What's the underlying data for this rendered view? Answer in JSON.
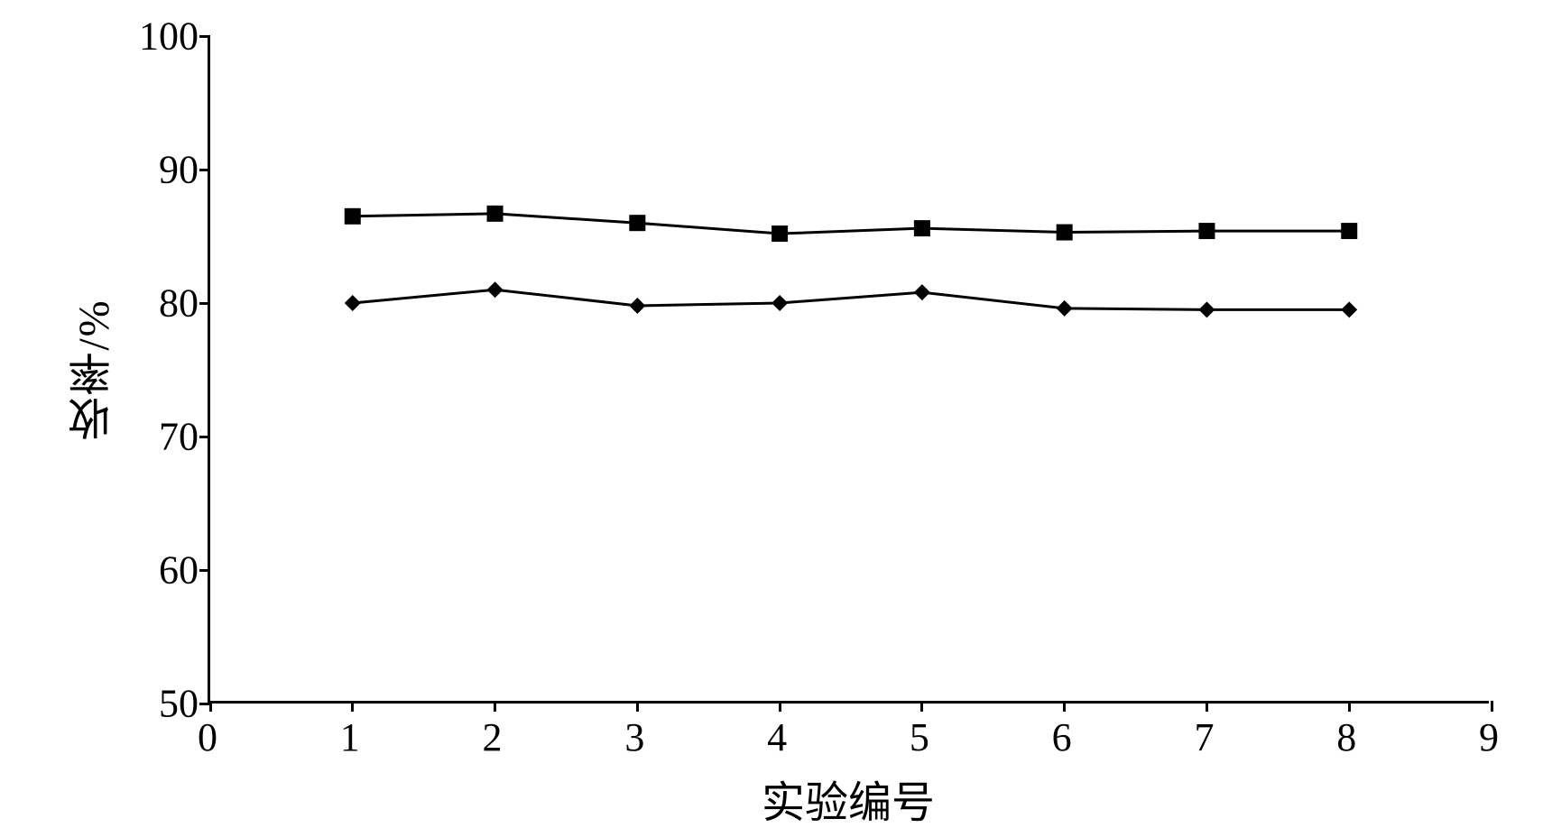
{
  "chart": {
    "type": "line",
    "background_color": "#ffffff",
    "axis_color": "#000000",
    "axis_width": 3,
    "x_axis": {
      "title": "实验编号",
      "min": 0,
      "max": 9,
      "ticks": [
        0,
        1,
        2,
        3,
        4,
        5,
        6,
        7,
        8,
        9
      ],
      "tick_labels": [
        "0",
        "1",
        "2",
        "3",
        "4",
        "5",
        "6",
        "7",
        "8",
        "9"
      ],
      "title_fontsize": 48,
      "label_fontsize": 44
    },
    "y_axis": {
      "title": "收率/%",
      "min": 50,
      "max": 100,
      "ticks": [
        50,
        60,
        70,
        80,
        90,
        100
      ],
      "tick_labels": [
        "50",
        "60",
        "70",
        "80",
        "90",
        "100"
      ],
      "title_fontsize": 48,
      "label_fontsize": 44
    },
    "series": [
      {
        "name": "series-square",
        "marker": "square",
        "marker_size": 18,
        "line_width": 3,
        "color": "#000000",
        "x": [
          1,
          2,
          3,
          4,
          5,
          6,
          7,
          8
        ],
        "y": [
          86.5,
          86.7,
          86.0,
          85.2,
          85.6,
          85.3,
          85.4,
          85.4
        ]
      },
      {
        "name": "series-diamond",
        "marker": "diamond",
        "marker_size": 18,
        "line_width": 3,
        "color": "#000000",
        "x": [
          1,
          2,
          3,
          4,
          5,
          6,
          7,
          8
        ],
        "y": [
          80.0,
          81.0,
          79.8,
          80.0,
          80.8,
          79.6,
          79.5,
          79.5
        ]
      }
    ]
  }
}
